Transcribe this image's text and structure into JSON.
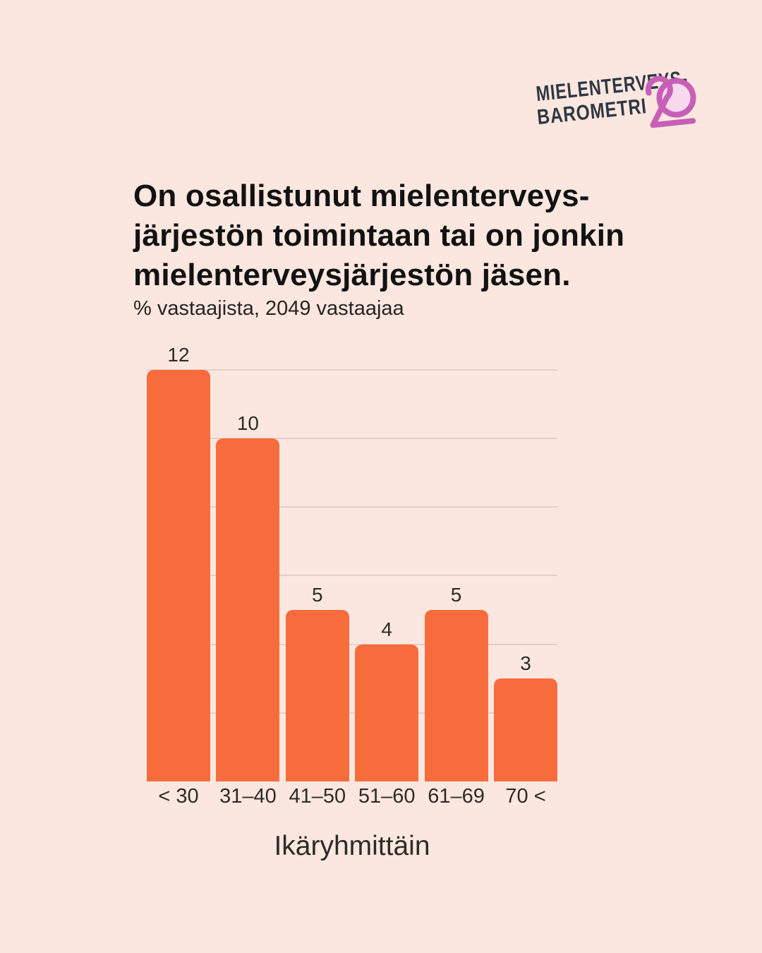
{
  "logo": {
    "line1": "MIELENTERVEYS-",
    "line2": "BAROMETRI",
    "badge": "20"
  },
  "header": {
    "title_lines": [
      "On osallistunut mielenterveys-",
      "järjestön toimintaan tai on jonkin",
      "mielenterveysjärjestön jäsen."
    ],
    "subtitle": "% vastaajista, 2049 vastaajaa"
  },
  "chart_data": {
    "type": "bar",
    "title": "On osallistunut mielenterveysjärjestön toimintaan tai on jonkin mielenterveysjärjestön jäsen.",
    "subtitle": "% vastaajista, 2049 vastaajaa",
    "categories": [
      "< 30",
      "31–40",
      "41–50",
      "51–60",
      "61–69",
      "70 <"
    ],
    "values": [
      12,
      10,
      5,
      4,
      5,
      3
    ],
    "value_labels": [
      12,
      10,
      5,
      4,
      5,
      3
    ],
    "xlabel": "Ikäryhmittäin",
    "ylabel": "",
    "ylim": [
      0,
      13
    ],
    "grid": true,
    "gridline_values": [
      2,
      4,
      6,
      8,
      10,
      12
    ],
    "legend": false,
    "unit": "%"
  },
  "colors": {
    "background": "#FBE7DF",
    "bar": "#F76C3C",
    "grid": "#E3CFC9",
    "ink": "#121212",
    "label_ink": "#2D2B28",
    "logo_text": "#2F3744",
    "logo_accent": "#C75FB6",
    "logo_ring_fill": "#F8D9EE"
  }
}
